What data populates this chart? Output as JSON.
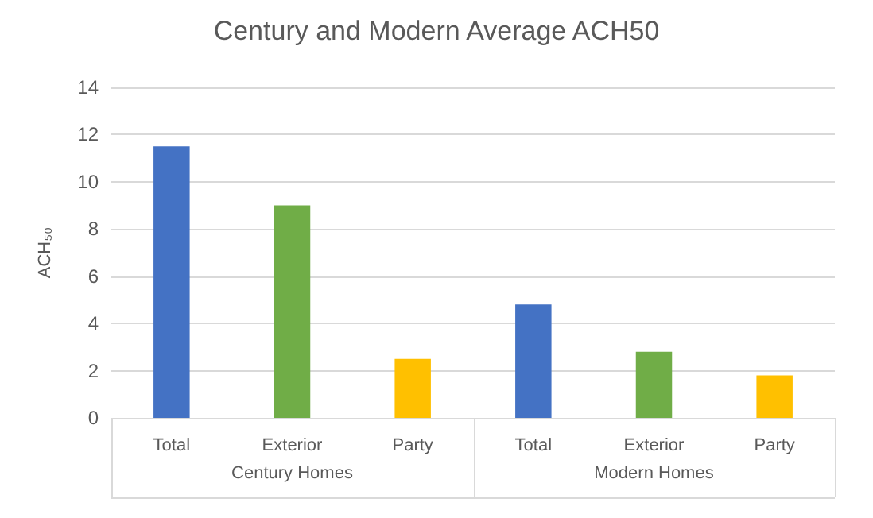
{
  "chart_data": {
    "type": "bar",
    "title": "Century and Modern Average ACH50",
    "ylabel": "ACH₅₀",
    "categories": [
      "Total",
      "Exterior",
      "Party",
      "Total",
      "Exterior",
      "Party"
    ],
    "values": [
      11.5,
      9.0,
      2.5,
      4.8,
      2.8,
      1.8
    ],
    "colors": [
      "#4472c4",
      "#70ad47",
      "#ffc000",
      "#4472c4",
      "#70ad47",
      "#ffc000"
    ],
    "annotations": [
      "Century Homes",
      "Modern Homes"
    ],
    "ylim": [
      0,
      14
    ],
    "yticks": [
      0,
      2,
      4,
      6,
      8,
      10,
      12,
      14
    ],
    "grid": "y"
  }
}
